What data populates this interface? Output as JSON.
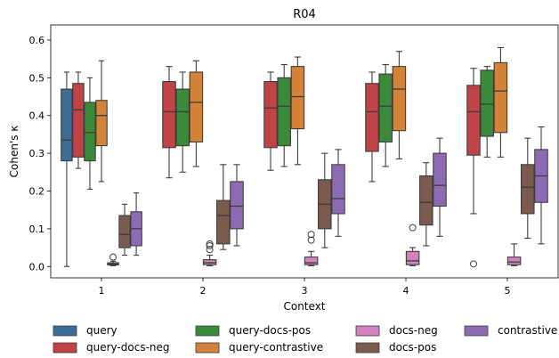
{
  "chart_data": {
    "type": "box",
    "title": "R04",
    "xlabel": "Context",
    "ylabel": "Cohen's κ",
    "ylim": [
      -0.03,
      0.64
    ],
    "yticks": [
      "0.0",
      "0.1",
      "0.2",
      "0.3",
      "0.4",
      "0.5",
      "0.6"
    ],
    "categories": [
      "1",
      "2",
      "3",
      "4",
      "5"
    ],
    "legend_position": "bottom",
    "series": [
      {
        "name": "query",
        "color": "#3a6e96",
        "boxes": [
          {
            "min": 0.0,
            "q1": 0.28,
            "median": 0.335,
            "q3": 0.47,
            "max": 0.515,
            "outliers": []
          }
        ]
      },
      {
        "name": "query-docs-neg",
        "color": "#c04346",
        "boxes": [
          {
            "min": 0.26,
            "q1": 0.29,
            "median": 0.415,
            "q3": 0.485,
            "max": 0.515,
            "outliers": []
          },
          {
            "min": 0.235,
            "q1": 0.315,
            "median": 0.41,
            "q3": 0.49,
            "max": 0.53,
            "outliers": []
          },
          {
            "min": 0.255,
            "q1": 0.315,
            "median": 0.42,
            "q3": 0.49,
            "max": 0.515,
            "outliers": []
          },
          {
            "min": 0.225,
            "q1": 0.305,
            "median": 0.41,
            "q3": 0.485,
            "max": 0.515,
            "outliers": []
          },
          {
            "min": 0.14,
            "q1": 0.295,
            "median": 0.41,
            "q3": 0.48,
            "max": 0.525,
            "outliers": [
              0.007
            ]
          }
        ]
      },
      {
        "name": "query-docs-pos",
        "color": "#3a8a3a",
        "boxes": [
          {
            "min": 0.205,
            "q1": 0.28,
            "median": 0.355,
            "q3": 0.435,
            "max": 0.5,
            "outliers": []
          },
          {
            "min": 0.25,
            "q1": 0.32,
            "median": 0.41,
            "q3": 0.47,
            "max": 0.515,
            "outliers": []
          },
          {
            "min": 0.265,
            "q1": 0.32,
            "median": 0.425,
            "q3": 0.5,
            "max": 0.535,
            "outliers": []
          },
          {
            "min": 0.265,
            "q1": 0.33,
            "median": 0.425,
            "q3": 0.51,
            "max": 0.535,
            "outliers": []
          },
          {
            "min": 0.29,
            "q1": 0.345,
            "median": 0.43,
            "q3": 0.52,
            "max": 0.53,
            "outliers": []
          }
        ]
      },
      {
        "name": "query-contrastive",
        "color": "#d3823a",
        "boxes": [
          {
            "min": 0.225,
            "q1": 0.32,
            "median": 0.4,
            "q3": 0.44,
            "max": 0.545,
            "outliers": []
          },
          {
            "min": 0.265,
            "q1": 0.33,
            "median": 0.435,
            "q3": 0.515,
            "max": 0.545,
            "outliers": []
          },
          {
            "min": 0.27,
            "q1": 0.365,
            "median": 0.45,
            "q3": 0.53,
            "max": 0.555,
            "outliers": []
          },
          {
            "min": 0.285,
            "q1": 0.36,
            "median": 0.47,
            "q3": 0.53,
            "max": 0.57,
            "outliers": []
          },
          {
            "min": 0.29,
            "q1": 0.355,
            "median": 0.465,
            "q3": 0.54,
            "max": 0.58,
            "outliers": []
          }
        ]
      },
      {
        "name": "docs-neg",
        "color": "#d283bf",
        "boxes": [
          {
            "min": 0.002,
            "q1": 0.004,
            "median": 0.007,
            "q3": 0.01,
            "max": 0.014,
            "outliers": [
              0.025
            ]
          },
          {
            "min": 0.002,
            "q1": 0.005,
            "median": 0.01,
            "q3": 0.018,
            "max": 0.03,
            "outliers": [
              0.045,
              0.055,
              0.06
            ]
          },
          {
            "min": 0.002,
            "q1": 0.005,
            "median": 0.01,
            "q3": 0.025,
            "max": 0.04,
            "outliers": [
              0.07,
              0.085
            ]
          },
          {
            "min": 0.002,
            "q1": 0.005,
            "median": 0.015,
            "q3": 0.04,
            "max": 0.05,
            "outliers": [
              0.103
            ]
          },
          {
            "min": 0.002,
            "q1": 0.005,
            "median": 0.012,
            "q3": 0.025,
            "max": 0.06,
            "outliers": []
          }
        ]
      },
      {
        "name": "docs-pos",
        "color": "#7b5a4f",
        "boxes": [
          {
            "min": 0.03,
            "q1": 0.05,
            "median": 0.085,
            "q3": 0.135,
            "max": 0.165,
            "outliers": []
          },
          {
            "min": 0.045,
            "q1": 0.06,
            "median": 0.135,
            "q3": 0.175,
            "max": 0.27,
            "outliers": []
          },
          {
            "min": 0.05,
            "q1": 0.1,
            "median": 0.165,
            "q3": 0.23,
            "max": 0.3,
            "outliers": []
          },
          {
            "min": 0.055,
            "q1": 0.11,
            "median": 0.17,
            "q3": 0.24,
            "max": 0.275,
            "outliers": []
          },
          {
            "min": 0.075,
            "q1": 0.14,
            "median": 0.21,
            "q3": 0.27,
            "max": 0.34,
            "outliers": []
          }
        ]
      },
      {
        "name": "contrastive",
        "color": "#8c6bb3",
        "boxes": [
          {
            "min": 0.03,
            "q1": 0.055,
            "median": 0.1,
            "q3": 0.145,
            "max": 0.195,
            "outliers": []
          },
          {
            "min": 0.055,
            "q1": 0.1,
            "median": 0.16,
            "q3": 0.225,
            "max": 0.27,
            "outliers": []
          },
          {
            "min": 0.08,
            "q1": 0.14,
            "median": 0.18,
            "q3": 0.27,
            "max": 0.31,
            "outliers": []
          },
          {
            "min": 0.08,
            "q1": 0.16,
            "median": 0.215,
            "q3": 0.3,
            "max": 0.34,
            "outliers": []
          },
          {
            "min": 0.06,
            "q1": 0.17,
            "median": 0.24,
            "q3": 0.31,
            "max": 0.37,
            "outliers": []
          }
        ]
      }
    ]
  }
}
